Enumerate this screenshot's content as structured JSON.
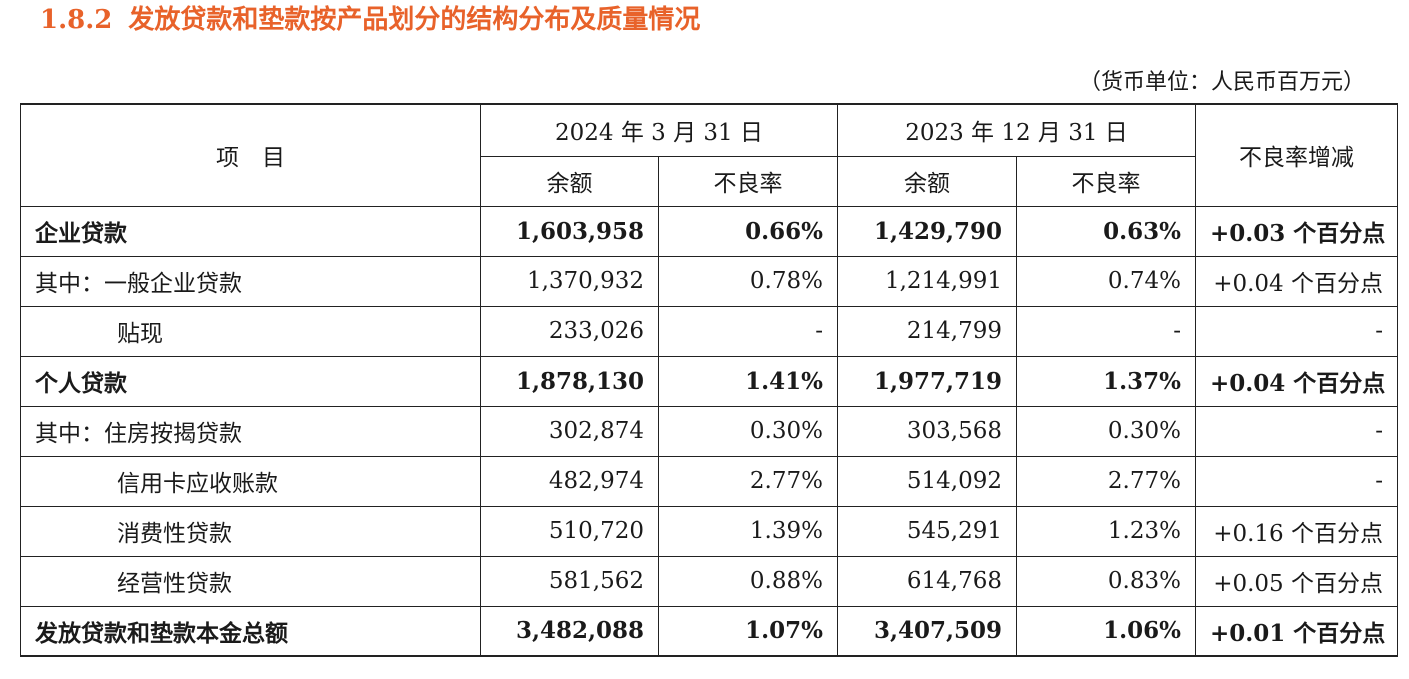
{
  "heading": {
    "number": "1.8.2",
    "title": "发放贷款和垫款按产品划分的结构分布及质量情况"
  },
  "unit_note": "（货币单位：人民币百万元）",
  "table": {
    "item_header": "项　目",
    "period1": "2024 年 3 月 31 日",
    "period2": "2023 年 12 月 31 日",
    "change_header": "不良率增减",
    "sub_balance": "余额",
    "sub_npl": "不良率",
    "rows": [
      {
        "item": "企业贷款",
        "bal1": "1,603,958",
        "npl1": "0.66%",
        "bal2": "1,429,790",
        "npl2": "0.63%",
        "chg": "+0.03 个百分点"
      },
      {
        "item": "其中：一般企业贷款",
        "bal1": "1,370,932",
        "npl1": "0.78%",
        "bal2": "1,214,991",
        "npl2": "0.74%",
        "chg": "+0.04 个百分点"
      },
      {
        "item": "贴现",
        "bal1": "233,026",
        "npl1": "-",
        "bal2": "214,799",
        "npl2": "-",
        "chg": "-"
      },
      {
        "item": "个人贷款",
        "bal1": "1,878,130",
        "npl1": "1.41%",
        "bal2": "1,977,719",
        "npl2": "1.37%",
        "chg": "+0.04 个百分点"
      },
      {
        "item": "其中：住房按揭贷款",
        "bal1": "302,874",
        "npl1": "0.30%",
        "bal2": "303,568",
        "npl2": "0.30%",
        "chg": "-"
      },
      {
        "item": "信用卡应收账款",
        "bal1": "482,974",
        "npl1": "2.77%",
        "bal2": "514,092",
        "npl2": "2.77%",
        "chg": "-"
      },
      {
        "item": "消费性贷款",
        "bal1": "510,720",
        "npl1": "1.39%",
        "bal2": "545,291",
        "npl2": "1.23%",
        "chg": "+0.16 个百分点"
      },
      {
        "item": "经营性贷款",
        "bal1": "581,562",
        "npl1": "0.88%",
        "bal2": "614,768",
        "npl2": "0.83%",
        "chg": "+0.05 个百分点"
      },
      {
        "item": "发放贷款和垫款本金总额",
        "bal1": "3,482,088",
        "npl1": "1.07%",
        "bal2": "3,407,509",
        "npl2": "1.06%",
        "chg": "+0.01 个百分点"
      }
    ]
  }
}
